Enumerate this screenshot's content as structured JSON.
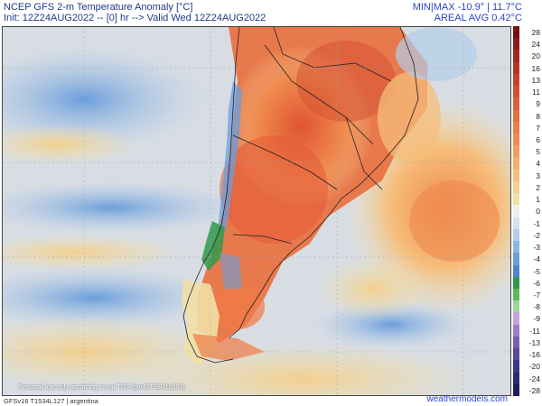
{
  "header": {
    "title": "NCEP GFS 2-m Temperature Anomaly [°C]",
    "init": "Init: 12Z24AUG2022 -- [0] hr --> Valid Wed 12Z24AUG2022",
    "minmax": "MIN|MAX -10.9° | 11.7°C",
    "areal_avg": "AREAL AVG 0.42°C"
  },
  "colorbar": {
    "labels": [
      "28",
      "24",
      "20",
      "16",
      "13",
      "11",
      "9",
      "8",
      "7",
      "6",
      "5",
      "4",
      "3",
      "2",
      "1",
      "0",
      "-1",
      "-2",
      "-3",
      "-4",
      "-5",
      "-6",
      "-7",
      "-8",
      "-9",
      "-11",
      "-13",
      "-16",
      "-20",
      "-24",
      "-28"
    ],
    "colors": [
      "#7a0e12",
      "#8c1a1a",
      "#a6261e",
      "#b83224",
      "#c8402a",
      "#d44e30",
      "#df5d38",
      "#e86c3e",
      "#ef7b46",
      "#f38a50",
      "#f69a5c",
      "#f7ac6a",
      "#f6bd7a",
      "#f4cf8e",
      "#f1e0a6",
      "#eeeeee",
      "#d4e1ee",
      "#b3cdea",
      "#8db6e4",
      "#6b9edb",
      "#4d86cf",
      "#2f9a4a",
      "#5cb85c",
      "#9bd69a",
      "#c6a4d9",
      "#a07dc8",
      "#7b5cb4",
      "#5a47a2",
      "#3b3690",
      "#2a2a7a",
      "#1c1c60"
    ]
  },
  "map": {
    "region": "argentina",
    "ocean_color": "#d8dde3",
    "warm_color": "#e8623c",
    "cool_color": "#6fa8dc"
  },
  "footer": {
    "disclaimer": "Personal use only according to our TOS (pvr49T38R1q088)",
    "model": "GFSv16 T1534L127 | argentina",
    "brand": "weathermodels.com"
  }
}
